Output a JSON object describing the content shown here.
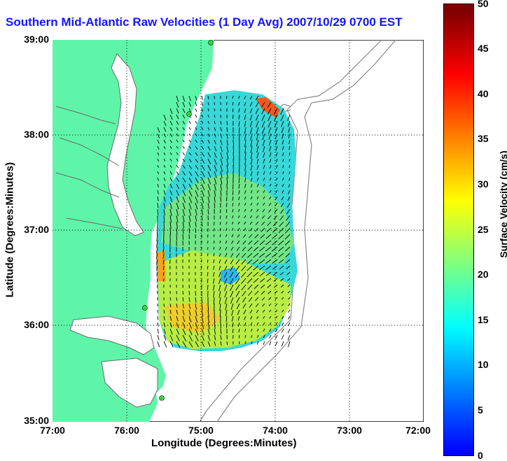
{
  "title": "Southern Mid-Atlantic Raw Velocities (1 Day Avg) 2007/10/29 0700 EST",
  "axes": {
    "xlabel": "Longitude (Degrees:Minutes)",
    "ylabel": "Latitude (Degrees:Minutes)",
    "xticks": [
      "77:00",
      "76:00",
      "75:00",
      "74:00",
      "73:00",
      "72:00"
    ],
    "yticks": [
      "39:00",
      "38:00",
      "37:00",
      "36:00",
      "35:00"
    ]
  },
  "colorbar": {
    "label": "Surface Velocity (cm/s)",
    "ticks": [
      "50",
      "45",
      "40",
      "35",
      "30",
      "25",
      "20",
      "15",
      "10",
      "5",
      "0"
    ],
    "range": [
      0,
      50
    ]
  },
  "colors": {
    "land": "#5ff5a8",
    "water": "#ffffff",
    "title": "#1414ff",
    "station": "#3ad43a"
  },
  "map_extent": {
    "lon": [
      -77,
      -72
    ],
    "lat": [
      35,
      39
    ]
  }
}
